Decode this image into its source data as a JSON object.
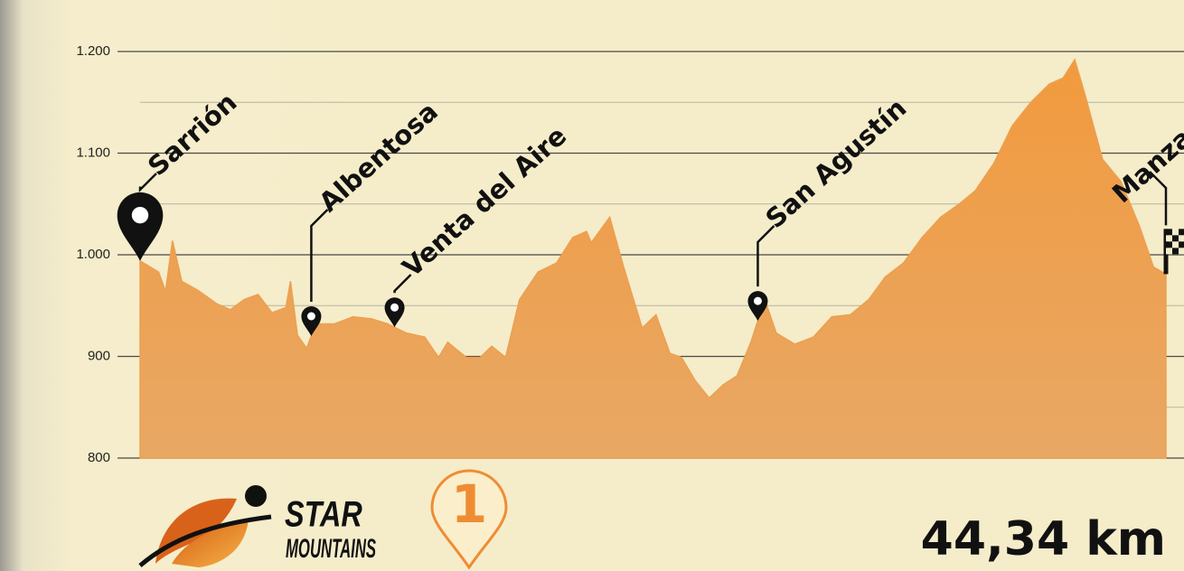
{
  "chart_data": {
    "type": "area",
    "x": [
      0,
      0.8,
      1.1,
      1.4,
      1.8,
      2.5,
      3.3,
      3.9,
      4.5,
      5.1,
      5.7,
      6.3,
      6.5,
      6.8,
      7.2,
      7.6,
      8.4,
      9.2,
      10.0,
      10.7,
      11.5,
      12.3,
      12.9,
      13.3,
      14.1,
      14.7,
      15.2,
      15.8,
      16.4,
      17.2,
      18.0,
      18.7,
      19.3,
      19.5,
      20.3,
      20.9,
      21.7,
      22.3,
      22.9,
      23.4,
      24.0,
      24.6,
      25.2,
      25.8,
      26.4,
      27.0,
      27.5,
      28.3,
      29.1,
      29.9,
      30.7,
      31.5,
      32.2,
      33.0,
      33.8,
      34.6,
      35.4,
      36.1,
      36.9,
      37.7,
      38.5,
      39.3,
      39.9,
      40.4,
      40.8,
      41.6,
      42.4,
      43.2,
      43.8,
      44.34
    ],
    "values": [
      994,
      983,
      964,
      1014,
      974,
      965,
      952,
      946,
      956,
      961,
      943,
      948,
      974,
      921,
      908,
      932,
      932,
      939,
      937,
      932,
      923,
      919,
      899,
      914,
      899,
      899,
      910,
      899,
      956,
      983,
      992,
      1017,
      1023,
      1012,
      1037,
      988,
      928,
      941,
      903,
      899,
      876,
      859,
      872,
      881,
      914,
      956,
      923,
      912,
      919,
      939,
      941,
      956,
      978,
      992,
      1017,
      1037,
      1050,
      1063,
      1090,
      1127,
      1150,
      1168,
      1174,
      1192,
      1161,
      1094,
      1072,
      1028,
      988,
      981
    ],
    "color": "#eca04f",
    "xlim": [
      0,
      44.34
    ],
    "ylim": [
      800,
      1200
    ],
    "yticks": [
      800,
      900,
      {
        "value": 1000,
        "label": "1.000"
      },
      {
        "value": 1100,
        "label": "1.100"
      },
      {
        "value": 1200,
        "label": "1.200"
      }
    ],
    "minor_yticks": [
      850,
      950,
      1050,
      1150
    ],
    "grid": true,
    "annotations": [
      {
        "text": "Sarrión",
        "x": 0
      },
      {
        "text": "Albentosa",
        "x": 7.4
      },
      {
        "text": "Venta del Aire",
        "x": 11.0
      },
      {
        "text": "San Agustín",
        "x": 26.7
      },
      {
        "text": "Manzanera",
        "x": 44.34
      }
    ],
    "logo": {
      "line1": "STAR",
      "line2": "MOUNTAINS",
      "badge": "1"
    },
    "distance_label": "44,34 km"
  }
}
